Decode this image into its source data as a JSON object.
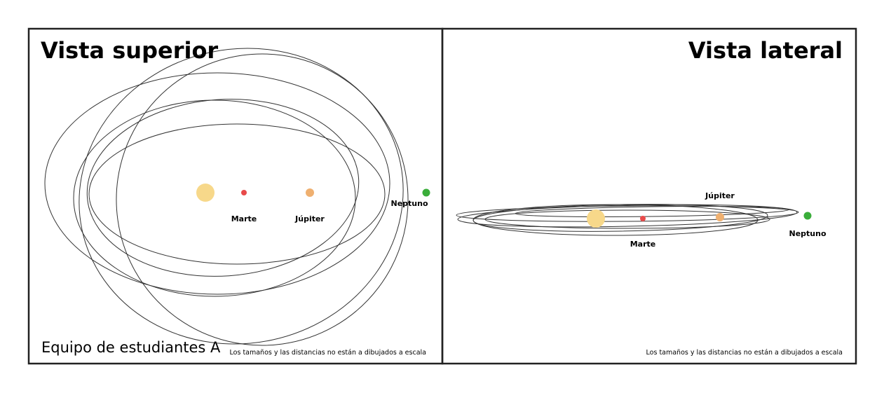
{
  "colors": {
    "sun": "#f7d88a",
    "mars": "#e84a4a",
    "jupiter": "#efb070",
    "neptune": "#3aad3a",
    "orbit": "#333333",
    "frame": "#222222"
  },
  "top_view": {
    "title": "Vista superior",
    "team_label": "Equipo de estudiantes A",
    "note": "Los tamaños y las distancias no están a dibujados a escala",
    "labels": {
      "mars": "Marte",
      "jupiter": "Júpiter",
      "neptune": "Neptuno"
    }
  },
  "side_view": {
    "title": "Vista lateral",
    "note": "Los tamaños y las distancias no están a dibujados a escala",
    "labels": {
      "jupiter": "Júpiter",
      "mars": "Marte",
      "neptune": "Neptuno"
    }
  }
}
